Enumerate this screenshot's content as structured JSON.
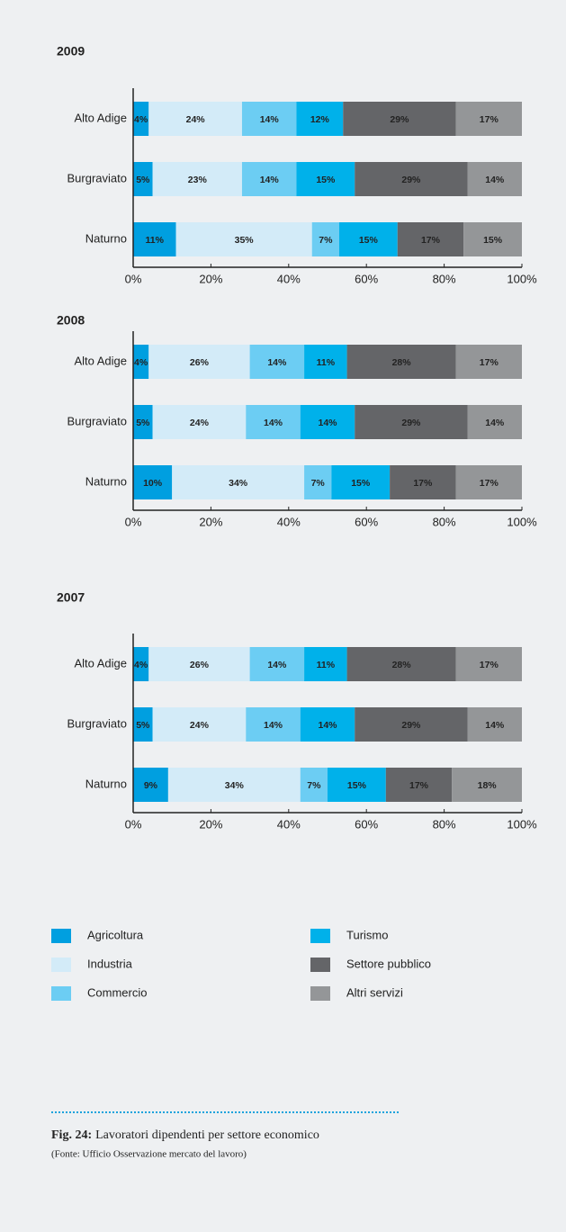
{
  "chart_data": [
    {
      "type": "stacked-bar-horizontal",
      "title": "2009",
      "categories": [
        "Alto Adige",
        "Burgraviato",
        "Naturno"
      ],
      "series": [
        {
          "values": [
            4,
            5,
            11
          ],
          "value_labels": [
            "4%",
            "5%",
            "11%"
          ]
        },
        {
          "values": [
            24,
            23,
            35
          ],
          "value_labels": [
            "24%",
            "23%",
            "35%"
          ]
        },
        {
          "values": [
            14,
            14,
            7
          ],
          "value_labels": [
            "14%",
            "14%",
            "7%"
          ]
        },
        {
          "values": [
            12,
            15,
            15
          ],
          "value_labels": [
            "12%",
            "15%",
            "15%"
          ]
        },
        {
          "values": [
            29,
            29,
            17
          ],
          "value_labels": [
            "29%",
            "29%",
            "17%"
          ]
        },
        {
          "values": [
            17,
            14,
            15
          ],
          "value_labels": [
            "17%",
            "14%",
            "15%"
          ]
        }
      ],
      "xlim": [
        0,
        100
      ],
      "xticks": [
        {
          "value": 0,
          "label": "0%"
        },
        {
          "value": 20,
          "label": "20%"
        },
        {
          "value": 40,
          "label": "40%"
        },
        {
          "value": 60,
          "label": "60%"
        },
        {
          "value": 80,
          "label": "80%"
        },
        {
          "value": 100,
          "label": "100%"
        }
      ]
    },
    {
      "type": "stacked-bar-horizontal",
      "title": "2008",
      "categories": [
        "Alto Adige",
        "Burgraviato",
        "Naturno"
      ],
      "series": [
        {
          "values": [
            4,
            5,
            10
          ],
          "value_labels": [
            "4%",
            "5%",
            "10%"
          ]
        },
        {
          "values": [
            26,
            24,
            34
          ],
          "value_labels": [
            "26%",
            "24%",
            "34%"
          ]
        },
        {
          "values": [
            14,
            14,
            7
          ],
          "value_labels": [
            "14%",
            "14%",
            "7%"
          ]
        },
        {
          "values": [
            11,
            14,
            15
          ],
          "value_labels": [
            "11%",
            "14%",
            "15%"
          ]
        },
        {
          "values": [
            28,
            29,
            17
          ],
          "value_labels": [
            "28%",
            "29%",
            "17%"
          ]
        },
        {
          "values": [
            17,
            14,
            17
          ],
          "value_labels": [
            "17%",
            "14%",
            "17%"
          ]
        }
      ],
      "xlim": [
        0,
        100
      ],
      "xticks": [
        {
          "value": 0,
          "label": "0%"
        },
        {
          "value": 20,
          "label": "20%"
        },
        {
          "value": 40,
          "label": "40%"
        },
        {
          "value": 60,
          "label": "60%"
        },
        {
          "value": 80,
          "label": "80%"
        },
        {
          "value": 100,
          "label": "100%"
        }
      ]
    },
    {
      "type": "stacked-bar-horizontal",
      "title": "2007",
      "categories": [
        "Alto Adige",
        "Burgraviato",
        "Naturno"
      ],
      "series": [
        {
          "values": [
            4,
            5,
            9
          ],
          "value_labels": [
            "4%",
            "5%",
            "9%"
          ]
        },
        {
          "values": [
            26,
            24,
            34
          ],
          "value_labels": [
            "26%",
            "24%",
            "34%"
          ]
        },
        {
          "values": [
            14,
            14,
            7
          ],
          "value_labels": [
            "14%",
            "14%",
            "7%"
          ]
        },
        {
          "values": [
            11,
            14,
            15
          ],
          "value_labels": [
            "11%",
            "14%",
            "15%"
          ]
        },
        {
          "values": [
            28,
            29,
            17
          ],
          "value_labels": [
            "28%",
            "29%",
            "17%"
          ]
        },
        {
          "values": [
            17,
            14,
            18
          ],
          "value_labels": [
            "17%",
            "14%",
            "18%"
          ]
        }
      ],
      "xlim": [
        0,
        100
      ],
      "xticks": [
        {
          "value": 0,
          "label": "0%"
        },
        {
          "value": 20,
          "label": "20%"
        },
        {
          "value": 40,
          "label": "40%"
        },
        {
          "value": 60,
          "label": "60%"
        },
        {
          "value": 80,
          "label": "80%"
        },
        {
          "value": 100,
          "label": "100%"
        }
      ]
    }
  ],
  "legend": [
    {
      "name": "Agricoltura",
      "color": "#009fe0"
    },
    {
      "name": "Industria",
      "color": "#d3ebf8"
    },
    {
      "name": "Commercio",
      "color": "#6ccdf3"
    },
    {
      "name": "Turismo",
      "color": "#00b1ea"
    },
    {
      "name": "Settore pubblico",
      "color": "#646568"
    },
    {
      "name": "Altri servizi",
      "color": "#949698"
    }
  ],
  "caption": {
    "label": "Fig. 24:",
    "text": "Lavoratori dipendenti per settore economico",
    "source": "(Fonte: Ufficio Osservazione mercato del lavoro)"
  }
}
